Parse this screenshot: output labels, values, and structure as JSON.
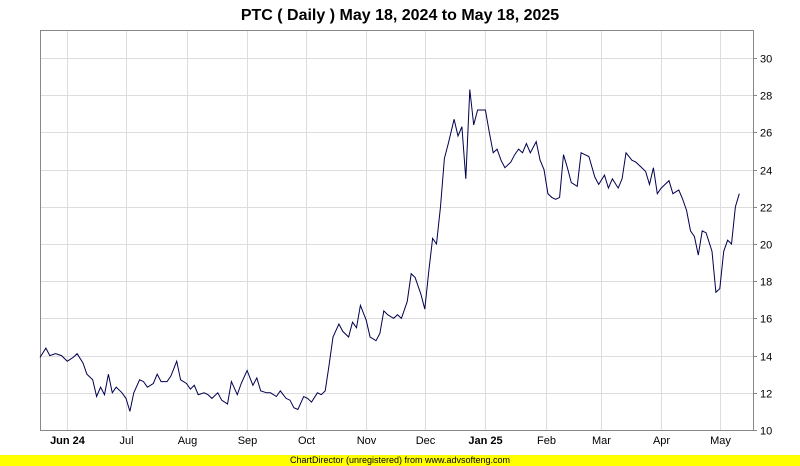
{
  "chart_data": {
    "type": "line",
    "title": "PTC ( Daily ) May 18, 2024 to May 18, 2025",
    "xlabel": "",
    "ylabel": "",
    "x_range": [
      "2024-05-18",
      "2025-05-18"
    ],
    "ylim": [
      10,
      31.5
    ],
    "y_ticks": [
      10,
      12,
      14,
      16,
      18,
      20,
      22,
      24,
      26,
      28,
      30
    ],
    "x_ticks": [
      {
        "label": "Jun 24",
        "date": "2024-06-01",
        "bold": true
      },
      {
        "label": "Jul",
        "date": "2024-07-01",
        "bold": false
      },
      {
        "label": "Aug",
        "date": "2024-08-01",
        "bold": false
      },
      {
        "label": "Sep",
        "date": "2024-09-01",
        "bold": false
      },
      {
        "label": "Oct",
        "date": "2024-10-01",
        "bold": false
      },
      {
        "label": "Nov",
        "date": "2024-11-01",
        "bold": false
      },
      {
        "label": "Dec",
        "date": "2024-12-01",
        "bold": false
      },
      {
        "label": "Jan 25",
        "date": "2025-01-01",
        "bold": true
      },
      {
        "label": "Feb",
        "date": "2025-02-01",
        "bold": false
      },
      {
        "label": "Mar",
        "date": "2025-03-01",
        "bold": false
      },
      {
        "label": "Apr",
        "date": "2025-04-01",
        "bold": false
      },
      {
        "label": "May",
        "date": "2025-05-01",
        "bold": false
      }
    ],
    "grid": true,
    "y_axis_side": "right",
    "series": [
      {
        "color": "#000050",
        "points": [
          [
            "2024-05-18",
            13.9
          ],
          [
            "2024-05-21",
            14.4
          ],
          [
            "2024-05-23",
            14.0
          ],
          [
            "2024-05-26",
            14.1
          ],
          [
            "2024-05-29",
            14.0
          ],
          [
            "2024-06-01",
            13.7
          ],
          [
            "2024-06-04",
            13.9
          ],
          [
            "2024-06-06",
            14.1
          ],
          [
            "2024-06-09",
            13.6
          ],
          [
            "2024-06-11",
            13.0
          ],
          [
            "2024-06-14",
            12.7
          ],
          [
            "2024-06-16",
            11.8
          ],
          [
            "2024-06-18",
            12.3
          ],
          [
            "2024-06-20",
            11.9
          ],
          [
            "2024-06-22",
            13.0
          ],
          [
            "2024-06-24",
            12.0
          ],
          [
            "2024-06-26",
            12.3
          ],
          [
            "2024-06-29",
            12.0
          ],
          [
            "2024-07-01",
            11.7
          ],
          [
            "2024-07-03",
            11.0
          ],
          [
            "2024-07-05",
            12.0
          ],
          [
            "2024-07-08",
            12.7
          ],
          [
            "2024-07-10",
            12.6
          ],
          [
            "2024-07-12",
            12.3
          ],
          [
            "2024-07-15",
            12.5
          ],
          [
            "2024-07-17",
            13.0
          ],
          [
            "2024-07-19",
            12.6
          ],
          [
            "2024-07-22",
            12.6
          ],
          [
            "2024-07-24",
            12.9
          ],
          [
            "2024-07-27",
            13.7
          ],
          [
            "2024-07-29",
            12.7
          ],
          [
            "2024-08-01",
            12.5
          ],
          [
            "2024-08-03",
            12.2
          ],
          [
            "2024-08-05",
            12.4
          ],
          [
            "2024-08-07",
            11.9
          ],
          [
            "2024-08-10",
            12.0
          ],
          [
            "2024-08-12",
            11.9
          ],
          [
            "2024-08-14",
            11.7
          ],
          [
            "2024-08-17",
            12.0
          ],
          [
            "2024-08-19",
            11.6
          ],
          [
            "2024-08-22",
            11.4
          ],
          [
            "2024-08-24",
            12.6
          ],
          [
            "2024-08-27",
            11.9
          ],
          [
            "2024-08-29",
            12.5
          ],
          [
            "2024-09-01",
            13.2
          ],
          [
            "2024-09-04",
            12.4
          ],
          [
            "2024-09-06",
            12.8
          ],
          [
            "2024-09-08",
            12.1
          ],
          [
            "2024-09-11",
            12.0
          ],
          [
            "2024-09-13",
            12.0
          ],
          [
            "2024-09-16",
            11.8
          ],
          [
            "2024-09-18",
            12.1
          ],
          [
            "2024-09-21",
            11.7
          ],
          [
            "2024-09-23",
            11.6
          ],
          [
            "2024-09-25",
            11.2
          ],
          [
            "2024-09-27",
            11.1
          ],
          [
            "2024-09-30",
            11.8
          ],
          [
            "2024-10-02",
            11.7
          ],
          [
            "2024-10-04",
            11.5
          ],
          [
            "2024-10-07",
            12.0
          ],
          [
            "2024-10-09",
            11.9
          ],
          [
            "2024-10-11",
            12.1
          ],
          [
            "2024-10-13",
            13.5
          ],
          [
            "2024-10-15",
            15.0
          ],
          [
            "2024-10-18",
            15.7
          ],
          [
            "2024-10-20",
            15.3
          ],
          [
            "2024-10-23",
            15.0
          ],
          [
            "2024-10-25",
            15.8
          ],
          [
            "2024-10-27",
            15.5
          ],
          [
            "2024-10-29",
            16.7
          ],
          [
            "2024-11-01",
            15.9
          ],
          [
            "2024-11-03",
            15.0
          ],
          [
            "2024-11-06",
            14.8
          ],
          [
            "2024-11-08",
            15.2
          ],
          [
            "2024-11-10",
            16.4
          ],
          [
            "2024-11-12",
            16.2
          ],
          [
            "2024-11-15",
            16.0
          ],
          [
            "2024-11-17",
            16.2
          ],
          [
            "2024-11-19",
            16.0
          ],
          [
            "2024-11-22",
            16.9
          ],
          [
            "2024-11-24",
            18.4
          ],
          [
            "2024-11-26",
            18.2
          ],
          [
            "2024-11-29",
            17.3
          ],
          [
            "2024-12-01",
            16.5
          ],
          [
            "2024-12-03",
            18.5
          ],
          [
            "2024-12-05",
            20.3
          ],
          [
            "2024-12-07",
            20.0
          ],
          [
            "2024-12-09",
            22.0
          ],
          [
            "2024-12-11",
            24.6
          ],
          [
            "2024-12-13",
            25.4
          ],
          [
            "2024-12-16",
            26.7
          ],
          [
            "2024-12-18",
            25.8
          ],
          [
            "2024-12-20",
            26.3
          ],
          [
            "2024-12-22",
            23.5
          ],
          [
            "2024-12-24",
            28.3
          ],
          [
            "2024-12-26",
            26.4
          ],
          [
            "2024-12-28",
            27.2
          ],
          [
            "2025-01-01",
            27.2
          ],
          [
            "2025-01-03",
            26.0
          ],
          [
            "2025-01-05",
            24.9
          ],
          [
            "2025-01-07",
            25.1
          ],
          [
            "2025-01-09",
            24.5
          ],
          [
            "2025-01-11",
            24.1
          ],
          [
            "2025-01-14",
            24.4
          ],
          [
            "2025-01-16",
            24.8
          ],
          [
            "2025-01-18",
            25.1
          ],
          [
            "2025-01-20",
            24.9
          ],
          [
            "2025-01-22",
            25.4
          ],
          [
            "2025-01-24",
            24.9
          ],
          [
            "2025-01-27",
            25.5
          ],
          [
            "2025-01-29",
            24.5
          ],
          [
            "2025-01-31",
            24.0
          ],
          [
            "2025-02-02",
            22.7
          ],
          [
            "2025-02-04",
            22.5
          ],
          [
            "2025-02-06",
            22.4
          ],
          [
            "2025-02-08",
            22.5
          ],
          [
            "2025-02-10",
            24.8
          ],
          [
            "2025-02-12",
            24.1
          ],
          [
            "2025-02-14",
            23.3
          ],
          [
            "2025-02-17",
            23.1
          ],
          [
            "2025-02-19",
            24.9
          ],
          [
            "2025-02-21",
            24.8
          ],
          [
            "2025-02-23",
            24.7
          ],
          [
            "2025-02-26",
            23.6
          ],
          [
            "2025-02-28",
            23.2
          ],
          [
            "2025-03-03",
            23.7
          ],
          [
            "2025-03-05",
            23.0
          ],
          [
            "2025-03-07",
            23.5
          ],
          [
            "2025-03-10",
            23.0
          ],
          [
            "2025-03-12",
            23.5
          ],
          [
            "2025-03-14",
            24.9
          ],
          [
            "2025-03-17",
            24.5
          ],
          [
            "2025-03-19",
            24.4
          ],
          [
            "2025-03-21",
            24.2
          ],
          [
            "2025-03-24",
            23.9
          ],
          [
            "2025-03-26",
            23.2
          ],
          [
            "2025-03-28",
            24.1
          ],
          [
            "2025-03-30",
            22.7
          ],
          [
            "2025-04-01",
            23.0
          ],
          [
            "2025-04-03",
            23.2
          ],
          [
            "2025-04-05",
            23.4
          ],
          [
            "2025-04-07",
            22.7
          ],
          [
            "2025-04-10",
            22.9
          ],
          [
            "2025-04-12",
            22.4
          ],
          [
            "2025-04-14",
            21.8
          ],
          [
            "2025-04-16",
            20.7
          ],
          [
            "2025-04-18",
            20.4
          ],
          [
            "2025-04-20",
            19.4
          ],
          [
            "2025-04-22",
            20.7
          ],
          [
            "2025-04-24",
            20.6
          ],
          [
            "2025-04-27",
            19.6
          ],
          [
            "2025-04-29",
            17.4
          ],
          [
            "2025-05-01",
            17.6
          ],
          [
            "2025-05-03",
            19.6
          ],
          [
            "2025-05-05",
            20.2
          ],
          [
            "2025-05-07",
            20.0
          ],
          [
            "2025-05-09",
            22.0
          ],
          [
            "2025-05-11",
            22.7
          ]
        ]
      }
    ]
  },
  "footer": {
    "text": "ChartDirector (unregistered) from www.advsofteng.com",
    "bg": "#ffff00"
  },
  "colors": {
    "line": "#000050",
    "grid": "#dddddd",
    "frame": "#888888"
  }
}
